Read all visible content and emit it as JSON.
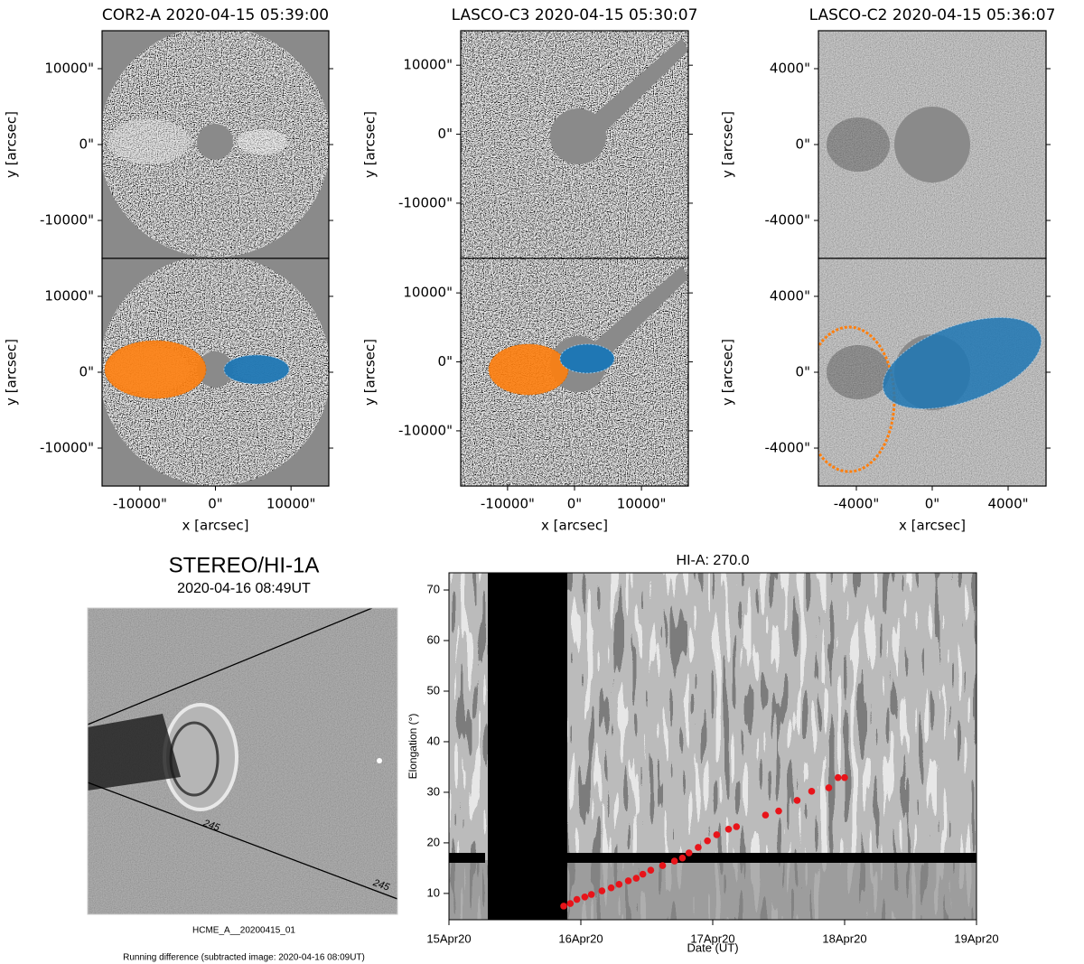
{
  "chart_data": [
    {
      "type": "image",
      "title": "COR2-A 2020-04-15 05:39:00",
      "ylabel": "y [arcsec]",
      "ylim": [
        -15000,
        15000
      ],
      "yticks": [
        {
          "value": 10000,
          "label": "10000\""
        },
        {
          "value": 0,
          "label": "0\""
        },
        {
          "value": -10000,
          "label": "-10000\""
        }
      ]
    },
    {
      "type": "image",
      "title": "LASCO-C3 2020-04-15 05:30:07",
      "ylabel": "y [arcsec]",
      "ylim": [
        -18000,
        15000
      ],
      "yticks": [
        {
          "value": 10000,
          "label": "10000\""
        },
        {
          "value": 0,
          "label": "0\""
        },
        {
          "value": -10000,
          "label": "-10000\""
        }
      ]
    },
    {
      "type": "image",
      "title": "LASCO-C2 2020-04-15 05:36:07",
      "ylabel": "y [arcsec]",
      "ylim": [
        -6000,
        6000
      ],
      "yticks": [
        {
          "value": 4000,
          "label": "4000\""
        },
        {
          "value": 0,
          "label": "0\""
        },
        {
          "value": -4000,
          "label": "-4000\""
        }
      ]
    },
    {
      "type": "image",
      "ylabel": "y [arcsec]",
      "xlabel": "x [arcsec]",
      "xlim": [
        -15000,
        15000
      ],
      "ylim": [
        -15000,
        15000
      ],
      "xticks": [
        {
          "value": -10000,
          "label": "-10000\""
        },
        {
          "value": 0,
          "label": "0\""
        },
        {
          "value": 10000,
          "label": "10000\""
        }
      ],
      "yticks": [
        {
          "value": 10000,
          "label": "10000\""
        },
        {
          "value": 0,
          "label": "0\""
        },
        {
          "value": -10000,
          "label": "-10000\""
        }
      ]
    },
    {
      "type": "image",
      "ylabel": "y [arcsec]",
      "xlabel": "x [arcsec]",
      "xlim": [
        -17000,
        17000
      ],
      "ylim": [
        -18000,
        15000
      ],
      "xticks": [
        {
          "value": -10000,
          "label": "-10000\""
        },
        {
          "value": 0,
          "label": "0\""
        },
        {
          "value": 10000,
          "label": "10000\""
        }
      ],
      "yticks": [
        {
          "value": 10000,
          "label": "10000\""
        },
        {
          "value": 0,
          "label": "0\""
        },
        {
          "value": -10000,
          "label": "-10000\""
        }
      ]
    },
    {
      "type": "image",
      "ylabel": "y [arcsec]",
      "xlabel": "x [arcsec]",
      "xlim": [
        -6000,
        6000
      ],
      "ylim": [
        -6000,
        6000
      ],
      "xticks": [
        {
          "value": -4000,
          "label": "-4000\""
        },
        {
          "value": 0,
          "label": "0\""
        },
        {
          "value": 4000,
          "label": "4000\""
        }
      ],
      "yticks": [
        {
          "value": 4000,
          "label": "4000\""
        },
        {
          "value": 0,
          "label": "0\""
        },
        {
          "value": -4000,
          "label": "-4000\""
        }
      ]
    },
    {
      "type": "photo",
      "title": "STEREO/HI-1A",
      "subtitle": "2020-04-16 08:49UT",
      "annotations": [
        "245",
        "245"
      ],
      "footer": [
        "HCME_A__20200415_01",
        "Running difference (subtracted image: 2020-04-16 08:09UT)"
      ]
    },
    {
      "type": "scatter",
      "title": "HI-A: 270.0",
      "xlabel": "Date (UT)",
      "ylabel": "Elongation (°)",
      "color": "#e8141a",
      "xlim": [
        0,
        4
      ],
      "ylim": [
        4.8,
        73.4
      ],
      "xticks": [
        {
          "value": 0,
          "label": "15Apr20"
        },
        {
          "value": 1,
          "label": "16Apr20"
        },
        {
          "value": 2,
          "label": "17Apr20"
        },
        {
          "value": 3,
          "label": "18Apr20"
        },
        {
          "value": 4,
          "label": "19Apr20"
        }
      ],
      "yticks": [
        10,
        20,
        30,
        40,
        50,
        60,
        70
      ],
      "x": [
        0.87,
        0.92,
        0.97,
        1.03,
        1.08,
        1.16,
        1.23,
        1.29,
        1.36,
        1.42,
        1.47,
        1.53,
        1.62,
        1.71,
        1.77,
        1.82,
        1.89,
        1.96,
        2.03,
        2.12,
        2.18,
        2.4,
        2.5,
        2.64,
        2.75,
        2.88,
        2.95,
        3.0
      ],
      "values": [
        7.5,
        8.0,
        8.8,
        9.3,
        9.8,
        10.5,
        11.1,
        11.8,
        12.5,
        13.0,
        13.8,
        14.6,
        15.5,
        16.4,
        17.0,
        18.0,
        19.1,
        20.4,
        21.6,
        22.7,
        23.2,
        25.5,
        26.3,
        28.4,
        30.2,
        30.9,
        32.9,
        32.9
      ]
    }
  ]
}
